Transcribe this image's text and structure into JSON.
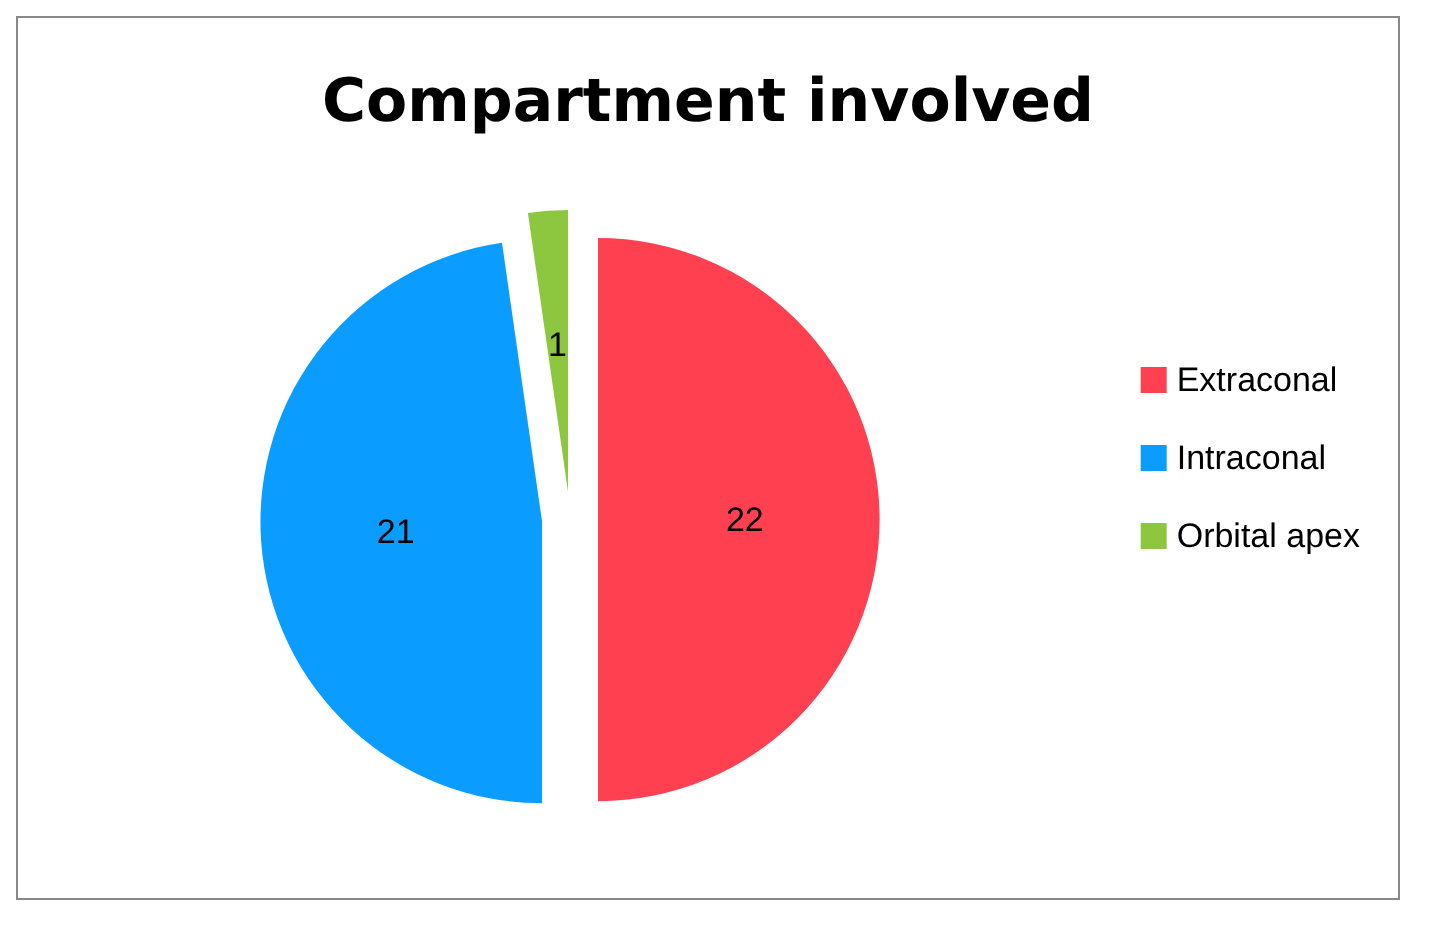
{
  "chart_data": {
    "type": "pie",
    "title": "Compartment involved",
    "categories": [
      "Extraconal",
      "Intraconal",
      "Orbital apex"
    ],
    "values": [
      22,
      21,
      1
    ],
    "colors": [
      "#ff4050",
      "#0a9cff",
      "#8dc63f"
    ],
    "data_labels": true,
    "legend": "right"
  }
}
